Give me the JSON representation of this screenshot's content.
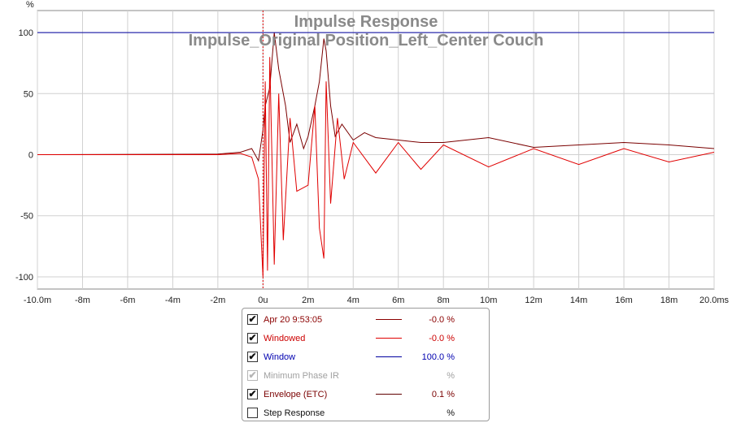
{
  "chart_data": {
    "type": "line",
    "title": "Impulse Response",
    "subtitle": "Impulse_Original Position_Left_Center Couch",
    "ylabel": "%",
    "xlabel": "",
    "xlim": [
      -10,
      20
    ],
    "ylim": [
      -110,
      118
    ],
    "x_unit": "ms",
    "x_ticks": [
      -10,
      -8,
      -6,
      -4,
      -2,
      0,
      2,
      4,
      6,
      8,
      10,
      12,
      14,
      16,
      18,
      20
    ],
    "x_tick_labels": [
      "-10.0m",
      "-8m",
      "-6m",
      "-4m",
      "-2m",
      "0u",
      "2m",
      "4m",
      "6m",
      "8m",
      "10m",
      "12m",
      "14m",
      "16m",
      "18m",
      "20.0ms"
    ],
    "y_ticks": [
      100,
      50,
      0,
      -50,
      -100
    ],
    "y_tick_labels": [
      "100",
      "50",
      "0",
      "-50",
      "-100"
    ],
    "grid": true,
    "marker_x": 0,
    "series": [
      {
        "name": "Apr 20 9:53:05",
        "color": "#7a0000",
        "x": [
          -10,
          -2,
          -1,
          -0.5,
          -0.2,
          0,
          0.1,
          0.3,
          0.5,
          0.7,
          1.0,
          1.2,
          1.5,
          1.8,
          2.0,
          2.3,
          2.5,
          2.7,
          2.8,
          3.0,
          3.2,
          3.5,
          4.0,
          4.5,
          5.0,
          6.0,
          7.0,
          8.0,
          9.0,
          10.0,
          12.0,
          14.0,
          16.0,
          18.0,
          20.0
        ],
        "values": [
          0,
          0.5,
          2,
          5,
          -5,
          20,
          40,
          55,
          100,
          70,
          40,
          10,
          25,
          5,
          15,
          40,
          60,
          95,
          85,
          40,
          15,
          25,
          12,
          18,
          14,
          12,
          10,
          10,
          12,
          14,
          6,
          8,
          10,
          8,
          5
        ]
      },
      {
        "name": "Windowed",
        "color": "#e00000",
        "x": [
          -10,
          -2,
          -1,
          -0.5,
          -0.2,
          0,
          0.1,
          0.2,
          0.3,
          0.5,
          0.7,
          0.9,
          1.2,
          1.5,
          2.0,
          2.3,
          2.5,
          2.7,
          2.8,
          3.0,
          3.3,
          3.6,
          4.0,
          5.0,
          6.0,
          7.0,
          8.0,
          10.0,
          12.0,
          14.0,
          16.0,
          18.0,
          20.0
        ],
        "values": [
          0,
          0,
          1,
          -2,
          -20,
          -100,
          60,
          -95,
          80,
          -90,
          50,
          -70,
          30,
          -30,
          -25,
          40,
          -60,
          -85,
          60,
          -40,
          30,
          -20,
          10,
          -15,
          10,
          -12,
          8,
          -10,
          5,
          -8,
          5,
          -6,
          2
        ]
      },
      {
        "name": "Window",
        "color": "#0000a0",
        "x": [
          -10,
          20
        ],
        "values": [
          100,
          100
        ]
      }
    ]
  },
  "legend": {
    "items": [
      {
        "name": "Apr 20 9:53:05",
        "value": "-0.0 %",
        "checked": "✔",
        "color": "#8b0000",
        "text_color": "#8b0000"
      },
      {
        "name": "Windowed",
        "value": "-0.0 %",
        "checked": "✔",
        "color": "#e00000",
        "text_color": "#cc0000"
      },
      {
        "name": "Window",
        "value": "100.0 %",
        "checked": "✔",
        "color": "#0000a0",
        "text_color": "#0000b0"
      },
      {
        "name": "Minimum Phase IR",
        "value": "%",
        "checked": "✔",
        "color": "",
        "text_color": "#a0a0a0"
      },
      {
        "name": "Envelope (ETC)",
        "value": "0.1 %",
        "checked": "✔",
        "color": "#600000",
        "text_color": "#7a0000"
      },
      {
        "name": "Step Response",
        "value": "%",
        "checked": "",
        "color": "",
        "text_color": "#111111"
      }
    ]
  }
}
